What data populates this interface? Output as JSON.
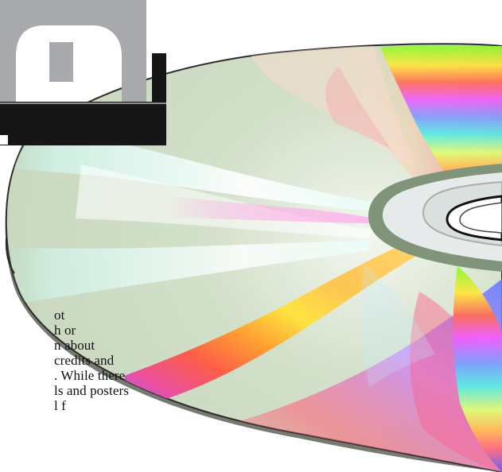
{
  "body_text": {
    "lines": [
      "ot",
      "h or",
      "n about",
      "credits and",
      ". While there",
      "ls and posters",
      "l        f"
    ]
  },
  "colors": {
    "page_background": "#ffffff",
    "text": "#111111",
    "logo_gray": "#a7a9ac",
    "logo_black": "#161616",
    "disc_base": "#d6e2cf",
    "disc_edge": "#6f7368",
    "hub_ring": "#e9ecec",
    "hub_dark_ring": "#7b8f7b"
  },
  "illustration": {
    "subject": "cd-disc-with-rainbow-reflection",
    "logo": "partial-gray-block-lettering"
  }
}
